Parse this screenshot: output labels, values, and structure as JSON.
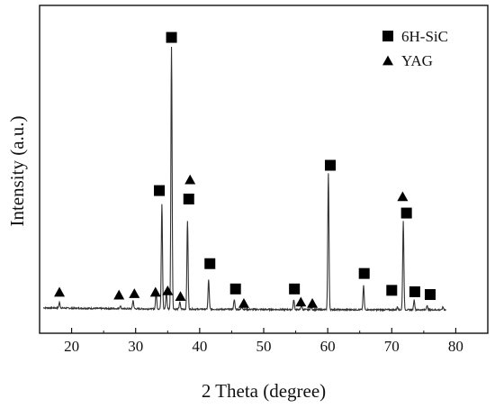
{
  "chart_data": {
    "type": "line",
    "xlabel": "2 Theta (degree)",
    "ylabel": "Intensity (a.u.)",
    "xlim": [
      15,
      85
    ],
    "xticks": [
      20,
      30,
      40,
      50,
      60,
      70,
      80
    ],
    "ylim": [
      0,
      100
    ],
    "y_ticks_shown": false,
    "grid": false,
    "legend_position": "top-right",
    "legend": [
      {
        "label": "6H-SiC",
        "marker": "square"
      },
      {
        "label": "YAG",
        "marker": "triangle"
      }
    ],
    "series": [
      {
        "color": "#333333",
        "baseline": 2.5,
        "peaks": [
          {
            "x": 18.1,
            "y": 4.5
          },
          {
            "x": 27.6,
            "y": 3.5
          },
          {
            "x": 29.6,
            "y": 5.5
          },
          {
            "x": 33.2,
            "y": 8.5
          },
          {
            "x": 34.1,
            "y": 40
          },
          {
            "x": 34.8,
            "y": 8.5
          },
          {
            "x": 35.6,
            "y": 96
          },
          {
            "x": 36.9,
            "y": 5
          },
          {
            "x": 38.1,
            "y": 34
          },
          {
            "x": 41.4,
            "y": 13
          },
          {
            "x": 45.4,
            "y": 6
          },
          {
            "x": 46.6,
            "y": 3.5
          },
          {
            "x": 54.7,
            "y": 6
          },
          {
            "x": 55.9,
            "y": 4
          },
          {
            "x": 57.4,
            "y": 3.5
          },
          {
            "x": 60.1,
            "y": 51
          },
          {
            "x": 65.6,
            "y": 11
          },
          {
            "x": 70.9,
            "y": 3.5
          },
          {
            "x": 71.8,
            "y": 34
          },
          {
            "x": 73.5,
            "y": 6
          },
          {
            "x": 75.5,
            "y": 4
          },
          {
            "x": 78.0,
            "y": 3.5
          }
        ]
      }
    ],
    "markers": [
      {
        "type": "square",
        "x": 35.6,
        "y": 99.5
      },
      {
        "type": "square",
        "x": 33.7,
        "y": 45
      },
      {
        "type": "square",
        "x": 38.3,
        "y": 42
      },
      {
        "type": "square",
        "x": 41.6,
        "y": 19
      },
      {
        "type": "square",
        "x": 45.6,
        "y": 10
      },
      {
        "type": "square",
        "x": 54.8,
        "y": 10
      },
      {
        "type": "square",
        "x": 60.4,
        "y": 54
      },
      {
        "type": "square",
        "x": 65.7,
        "y": 15.5
      },
      {
        "type": "square",
        "x": 70.0,
        "y": 9.5
      },
      {
        "type": "square",
        "x": 72.3,
        "y": 37
      },
      {
        "type": "square",
        "x": 73.6,
        "y": 9
      },
      {
        "type": "square",
        "x": 76.0,
        "y": 8
      },
      {
        "type": "triangle",
        "x": 18.1,
        "y": 9
      },
      {
        "type": "triangle",
        "x": 27.4,
        "y": 8
      },
      {
        "type": "triangle",
        "x": 29.8,
        "y": 8.5
      },
      {
        "type": "triangle",
        "x": 33.1,
        "y": 9
      },
      {
        "type": "triangle",
        "x": 35.0,
        "y": 9.5
      },
      {
        "type": "triangle",
        "x": 37.0,
        "y": 7.5
      },
      {
        "type": "triangle",
        "x": 38.5,
        "y": 49
      },
      {
        "type": "triangle",
        "x": 46.9,
        "y": 5
      },
      {
        "type": "triangle",
        "x": 55.8,
        "y": 5.5
      },
      {
        "type": "triangle",
        "x": 57.6,
        "y": 5
      },
      {
        "type": "triangle",
        "x": 71.7,
        "y": 43
      }
    ]
  }
}
